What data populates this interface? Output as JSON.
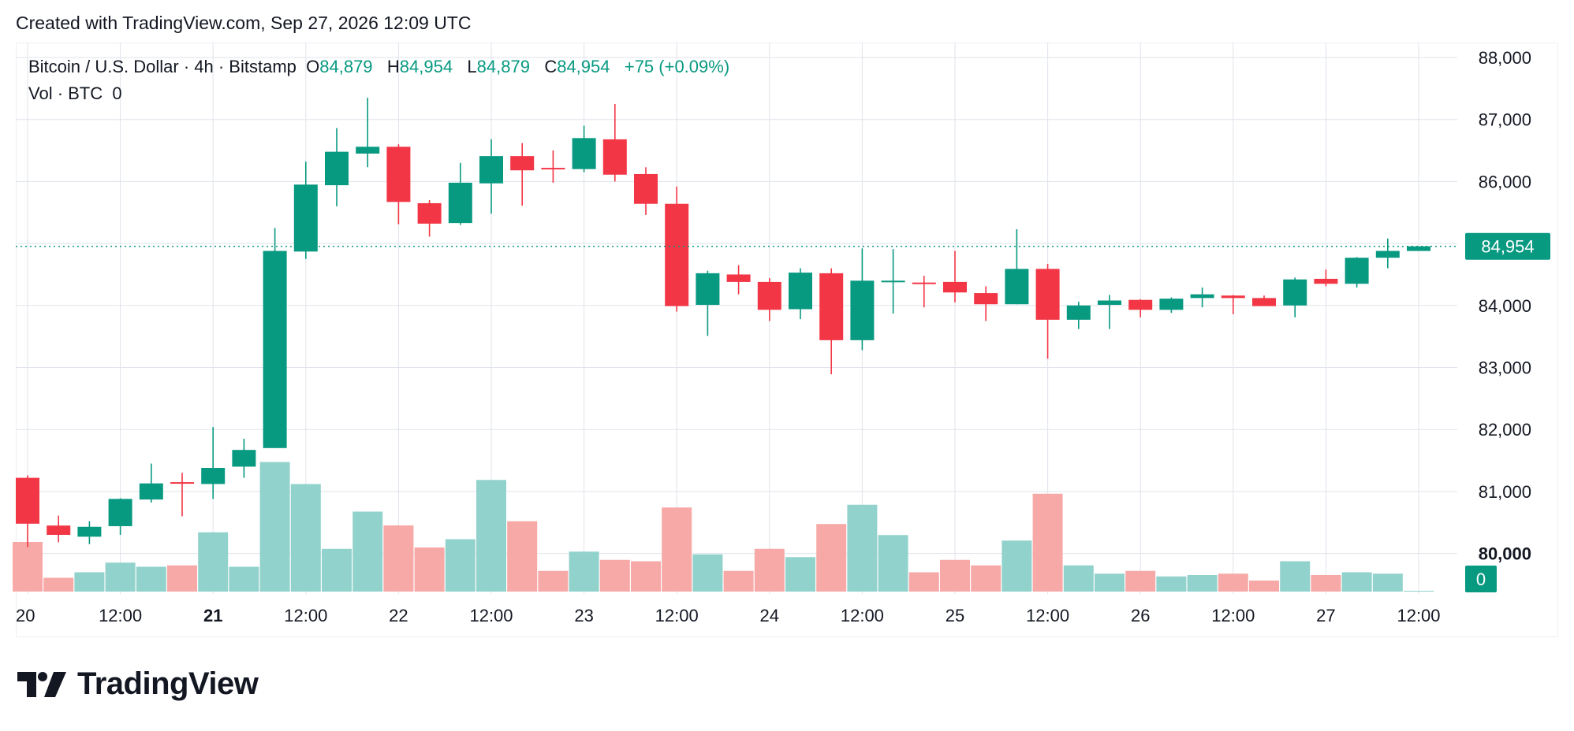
{
  "header": {
    "created_text": "Created with TradingView.com, Sep 27, 2026 12:09 UTC"
  },
  "legend": {
    "symbol": "Bitcoin / U.S. Dollar · 4h · Bitstamp",
    "open_label": "O",
    "open": "84,879",
    "high_label": "H",
    "high": "84,954",
    "low_label": "L",
    "low": "84,879",
    "close_label": "C",
    "close": "84,954",
    "change": "+75 (+0.09%)",
    "vol_label": "Vol · BTC",
    "vol_value": "0"
  },
  "price_tag": "84,954",
  "volume_tag": "0",
  "brand": {
    "name": "TradingView"
  },
  "colors": {
    "up": "#089981",
    "down": "#f23645",
    "vol_up": "#92d2cc",
    "vol_down": "#f7a9a7"
  },
  "chart_data": {
    "type": "candlestick",
    "title": "Bitcoin / U.S. Dollar · 4h · Bitstamp",
    "y_ticks": [
      "88,000",
      "87,000",
      "86,000",
      "85,000",
      "84,000",
      "83,000",
      "82,000",
      "81,000",
      "80,000"
    ],
    "y_tick_values": [
      88000,
      87000,
      86000,
      85000,
      84000,
      83000,
      82000,
      81000,
      80000
    ],
    "ylim": [
      79300,
      88200
    ],
    "x_ticks": [
      {
        "label": "20",
        "index": 0,
        "bold": false
      },
      {
        "label": "12:00",
        "index": 3,
        "bold": false
      },
      {
        "label": "21",
        "index": 6,
        "bold": true
      },
      {
        "label": "12:00",
        "index": 9,
        "bold": false
      },
      {
        "label": "22",
        "index": 12,
        "bold": false
      },
      {
        "label": "12:00",
        "index": 15,
        "bold": false
      },
      {
        "label": "23",
        "index": 18,
        "bold": false
      },
      {
        "label": "12:00",
        "index": 21,
        "bold": false
      },
      {
        "label": "24",
        "index": 24,
        "bold": false
      },
      {
        "label": "12:00",
        "index": 27,
        "bold": false
      },
      {
        "label": "25",
        "index": 30,
        "bold": false
      },
      {
        "label": "12:00",
        "index": 33,
        "bold": false
      },
      {
        "label": "26",
        "index": 36,
        "bold": false
      },
      {
        "label": "12:00",
        "index": 39,
        "bold": false
      },
      {
        "label": "27",
        "index": 42,
        "bold": false
      },
      {
        "label": "12:00",
        "index": 45,
        "bold": false
      }
    ],
    "last_price": 84954,
    "grid": true,
    "candles": [
      {
        "o": 81220,
        "h": 81260,
        "l": 80100,
        "c": 80480,
        "v": 0.36
      },
      {
        "o": 80450,
        "h": 80610,
        "l": 80180,
        "c": 80300,
        "v": 0.1
      },
      {
        "o": 80270,
        "h": 80520,
        "l": 80150,
        "c": 80430,
        "v": 0.14
      },
      {
        "o": 80440,
        "h": 80890,
        "l": 80300,
        "c": 80880,
        "v": 0.21
      },
      {
        "o": 80870,
        "h": 81450,
        "l": 80820,
        "c": 81130,
        "v": 0.18
      },
      {
        "o": 81150,
        "h": 81300,
        "l": 80600,
        "c": 81140,
        "v": 0.19
      },
      {
        "o": 81120,
        "h": 82040,
        "l": 80880,
        "c": 81380,
        "v": 0.43
      },
      {
        "o": 81400,
        "h": 81850,
        "l": 81220,
        "c": 81670,
        "v": 0.18
      },
      {
        "o": 81700,
        "h": 85250,
        "l": 81700,
        "c": 84880,
        "v": 0.94
      },
      {
        "o": 84870,
        "h": 86320,
        "l": 84750,
        "c": 85950,
        "v": 0.78
      },
      {
        "o": 85940,
        "h": 86860,
        "l": 85600,
        "c": 86480,
        "v": 0.31
      },
      {
        "o": 86450,
        "h": 87350,
        "l": 86230,
        "c": 86560,
        "v": 0.58
      },
      {
        "o": 86560,
        "h": 86600,
        "l": 85310,
        "c": 85670,
        "v": 0.48
      },
      {
        "o": 85650,
        "h": 85700,
        "l": 85110,
        "c": 85320,
        "v": 0.32
      },
      {
        "o": 85330,
        "h": 86300,
        "l": 85300,
        "c": 85980,
        "v": 0.38
      },
      {
        "o": 85970,
        "h": 86680,
        "l": 85480,
        "c": 86410,
        "v": 0.81
      },
      {
        "o": 86410,
        "h": 86620,
        "l": 85610,
        "c": 86180,
        "v": 0.51
      },
      {
        "o": 86220,
        "h": 86500,
        "l": 85980,
        "c": 86200,
        "v": 0.15
      },
      {
        "o": 86200,
        "h": 86900,
        "l": 86150,
        "c": 86700,
        "v": 0.29
      },
      {
        "o": 86680,
        "h": 87250,
        "l": 86000,
        "c": 86110,
        "v": 0.23
      },
      {
        "o": 86120,
        "h": 86230,
        "l": 85460,
        "c": 85640,
        "v": 0.22
      },
      {
        "o": 85640,
        "h": 85920,
        "l": 83900,
        "c": 83990,
        "v": 0.61
      },
      {
        "o": 84010,
        "h": 84560,
        "l": 83510,
        "c": 84520,
        "v": 0.27
      },
      {
        "o": 84500,
        "h": 84650,
        "l": 84180,
        "c": 84380,
        "v": 0.15
      },
      {
        "o": 84380,
        "h": 84440,
        "l": 83750,
        "c": 83930,
        "v": 0.31
      },
      {
        "o": 83940,
        "h": 84600,
        "l": 83780,
        "c": 84530,
        "v": 0.25
      },
      {
        "o": 84520,
        "h": 84600,
        "l": 82890,
        "c": 83440,
        "v": 0.49
      },
      {
        "o": 83440,
        "h": 84920,
        "l": 83280,
        "c": 84400,
        "v": 0.63
      },
      {
        "o": 84390,
        "h": 84910,
        "l": 83870,
        "c": 84400,
        "v": 0.41
      },
      {
        "o": 84370,
        "h": 84480,
        "l": 83970,
        "c": 84360,
        "v": 0.14
      },
      {
        "o": 84380,
        "h": 84880,
        "l": 84050,
        "c": 84210,
        "v": 0.23
      },
      {
        "o": 84200,
        "h": 84310,
        "l": 83750,
        "c": 84020,
        "v": 0.19
      },
      {
        "o": 84020,
        "h": 85230,
        "l": 84020,
        "c": 84590,
        "v": 0.37
      },
      {
        "o": 84590,
        "h": 84670,
        "l": 83140,
        "c": 83770,
        "v": 0.71
      },
      {
        "o": 83770,
        "h": 84060,
        "l": 83620,
        "c": 84000,
        "v": 0.19
      },
      {
        "o": 84010,
        "h": 84170,
        "l": 83620,
        "c": 84080,
        "v": 0.13
      },
      {
        "o": 84090,
        "h": 84100,
        "l": 83810,
        "c": 83930,
        "v": 0.15
      },
      {
        "o": 83930,
        "h": 84130,
        "l": 83880,
        "c": 84110,
        "v": 0.11
      },
      {
        "o": 84120,
        "h": 84290,
        "l": 83970,
        "c": 84180,
        "v": 0.12
      },
      {
        "o": 84160,
        "h": 84170,
        "l": 83860,
        "c": 84120,
        "v": 0.13
      },
      {
        "o": 84120,
        "h": 84160,
        "l": 83990,
        "c": 83990,
        "v": 0.08
      },
      {
        "o": 84000,
        "h": 84450,
        "l": 83810,
        "c": 84420,
        "v": 0.22
      },
      {
        "o": 84430,
        "h": 84580,
        "l": 84310,
        "c": 84350,
        "v": 0.12
      },
      {
        "o": 84350,
        "h": 84780,
        "l": 84290,
        "c": 84770,
        "v": 0.14
      },
      {
        "o": 84770,
        "h": 85080,
        "l": 84600,
        "c": 84880,
        "v": 0.13
      },
      {
        "o": 84879,
        "h": 84954,
        "l": 84879,
        "c": 84954,
        "v": 0.0
      }
    ]
  }
}
